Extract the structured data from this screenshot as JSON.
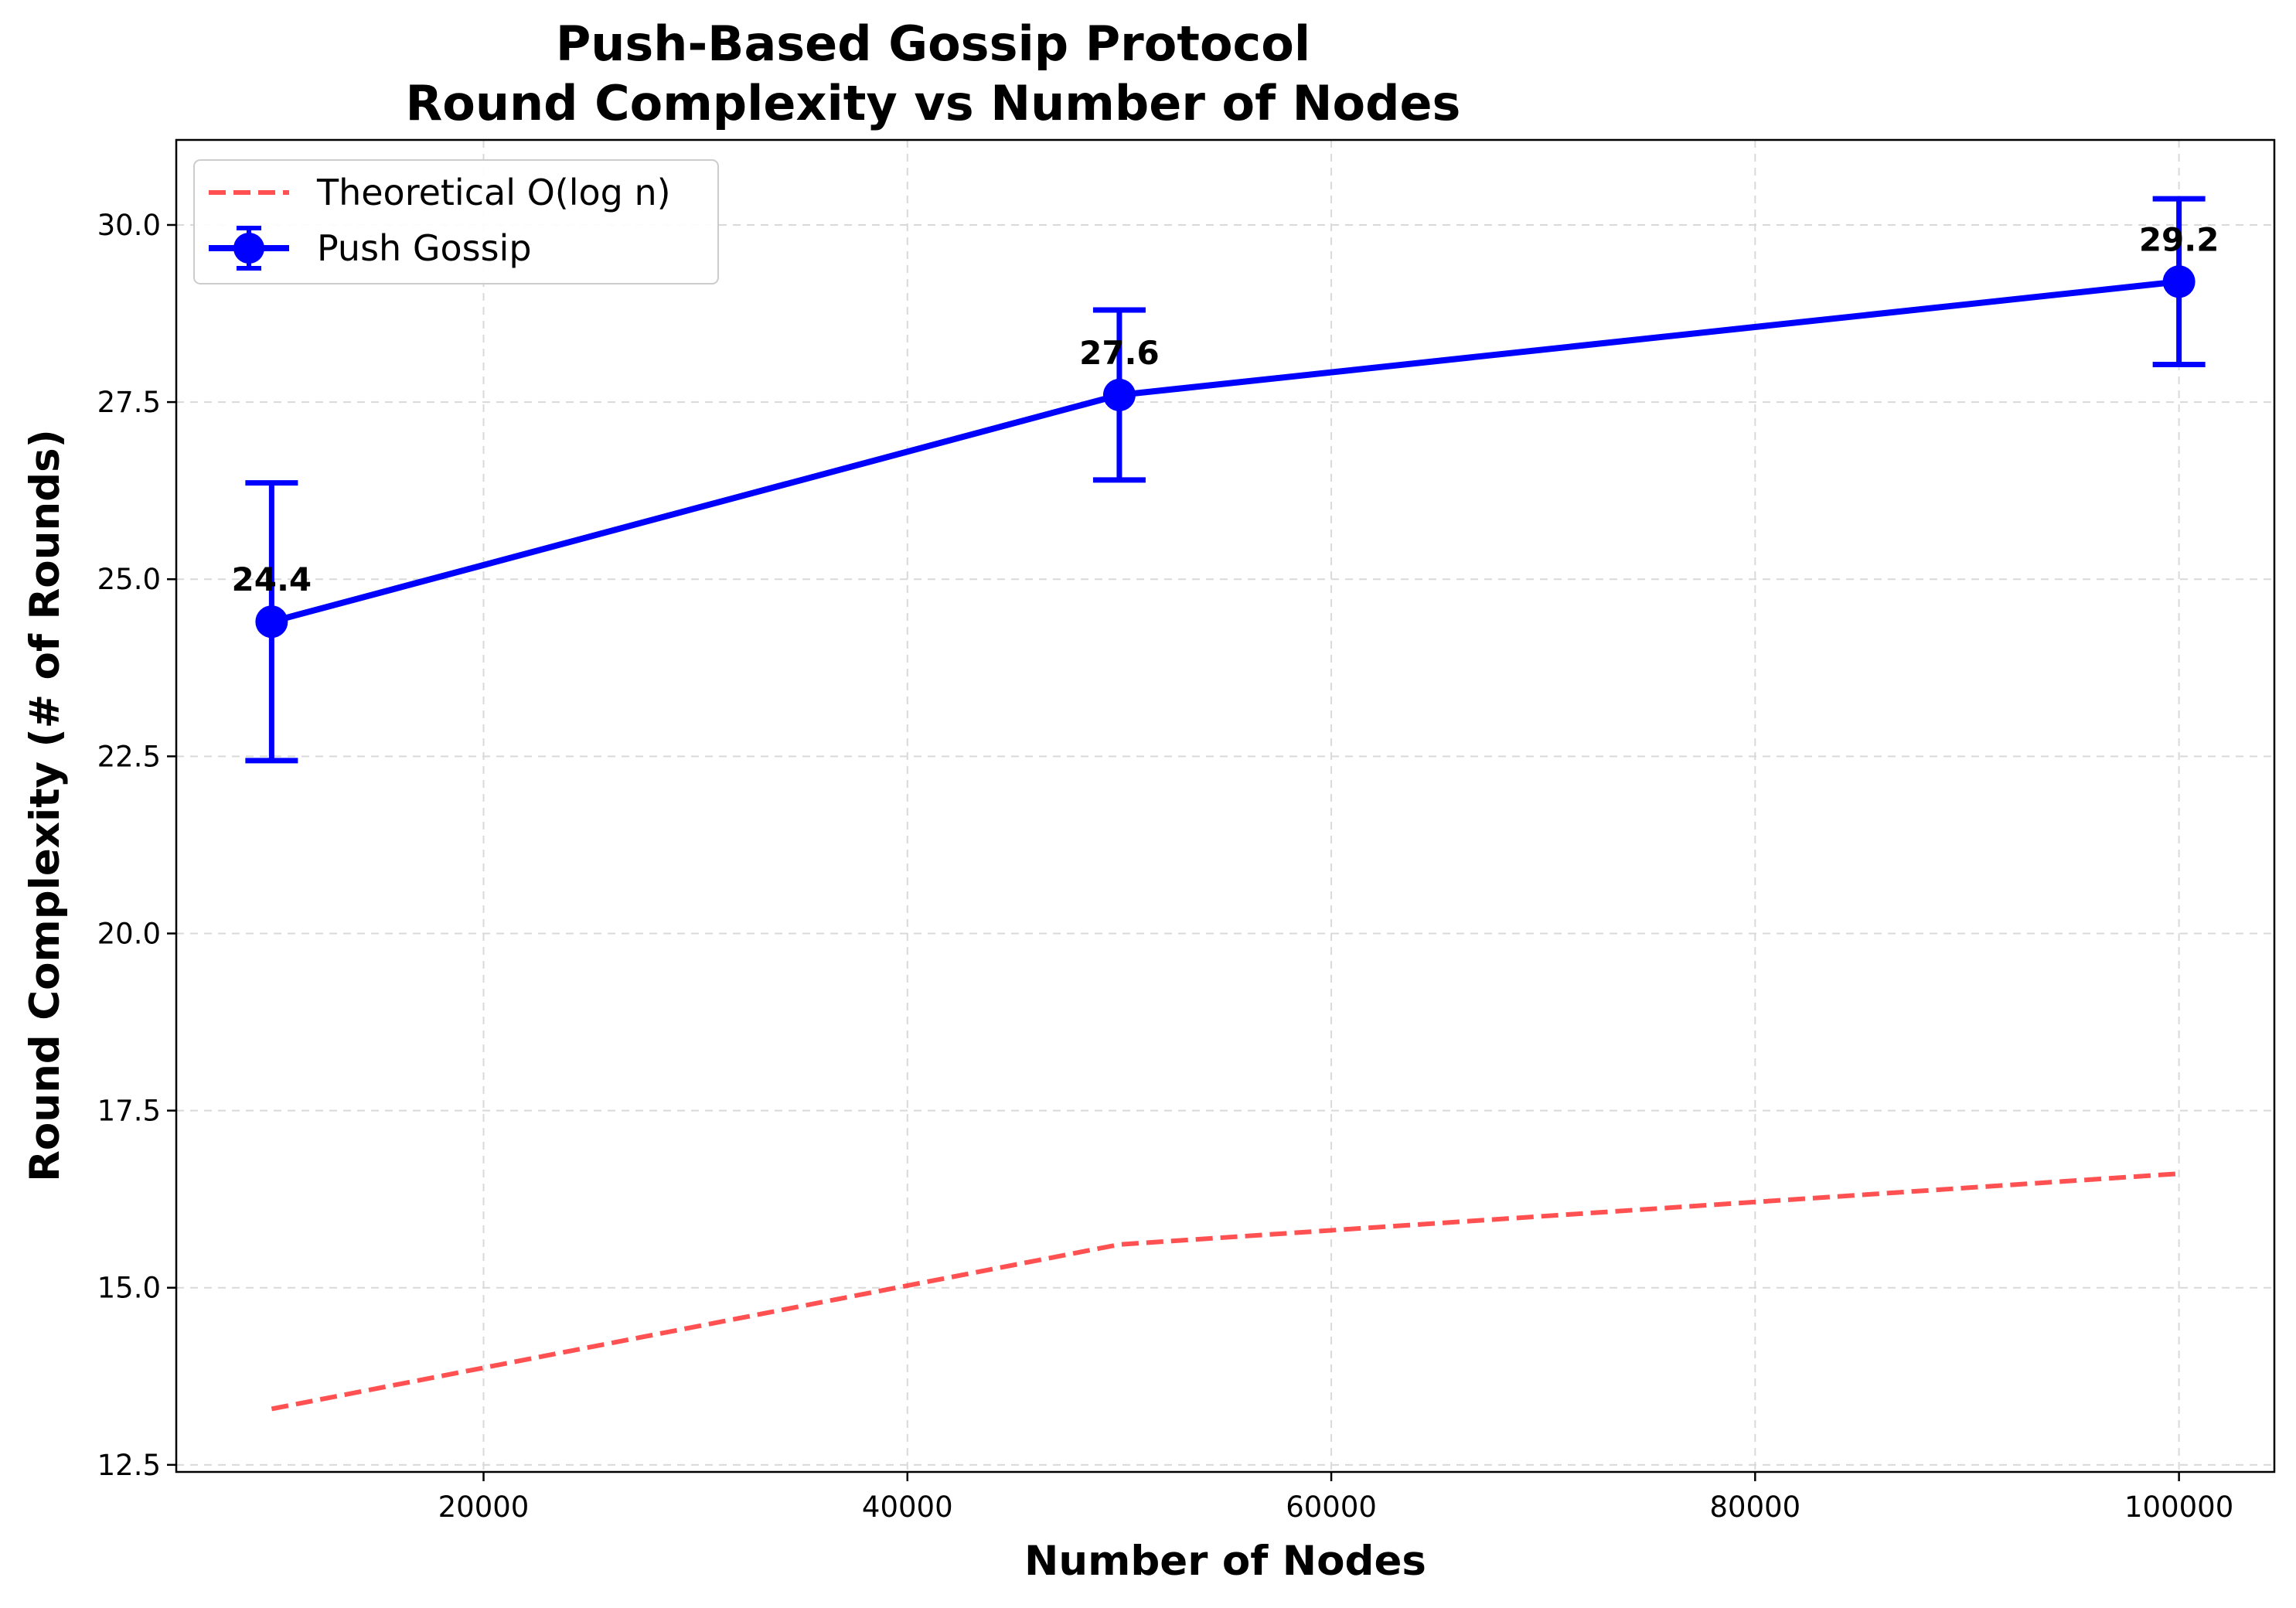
{
  "chart_data": {
    "type": "line",
    "title": [
      "Push-Based Gossip Protocol",
      "Round Complexity vs Number of Nodes"
    ],
    "xlabel": "Number of Nodes",
    "ylabel": "Round Complexity (# of Rounds)",
    "xlim": [
      5500,
      104500
    ],
    "ylim": [
      12.4,
      31.2
    ],
    "xticks": [
      20000,
      40000,
      60000,
      80000,
      100000
    ],
    "xtick_labels": [
      "20000",
      "40000",
      "60000",
      "80000",
      "100000"
    ],
    "yticks": [
      12.5,
      15.0,
      17.5,
      20.0,
      22.5,
      25.0,
      27.5,
      30.0
    ],
    "ytick_labels": [
      "12.5",
      "15.0",
      "17.5",
      "20.0",
      "22.5",
      "25.0",
      "27.5",
      "30.0"
    ],
    "grid": true,
    "legend_position": "top-left",
    "series": [
      {
        "name": "Theoretical O(log n)",
        "style": "dashed",
        "color": "#ff3333",
        "x": [
          10000,
          50000,
          100000
        ],
        "y": [
          13.29,
          15.61,
          16.61
        ]
      },
      {
        "name": "Push Gossip",
        "style": "solid-errorbar",
        "color": "#0000ff",
        "x": [
          10000,
          50000,
          100000
        ],
        "y": [
          24.4,
          27.6,
          29.2
        ],
        "yerr": [
          1.96,
          1.2,
          1.17
        ],
        "labels": [
          "24.4",
          "27.6",
          "29.2"
        ]
      }
    ]
  }
}
